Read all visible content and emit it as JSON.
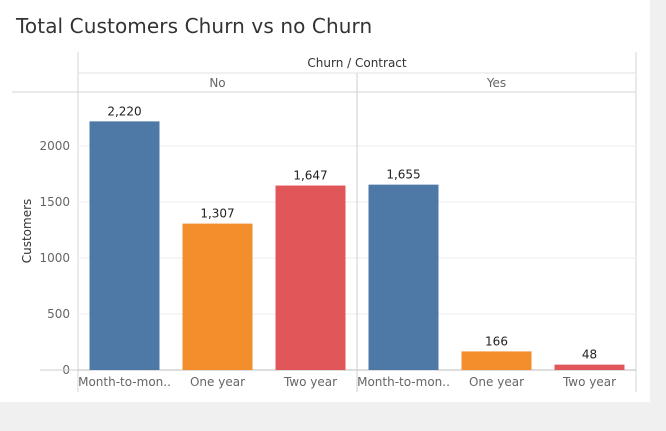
{
  "title": "Total Customers Churn vs no Churn",
  "chart_data": {
    "type": "bar",
    "column_header": "Churn / Contract",
    "ylabel": "Customers",
    "ylim": [
      0,
      2300
    ],
    "yticks": [
      0,
      500,
      1000,
      1500,
      2000
    ],
    "grid": true,
    "colors": {
      "Month-to-month": "#4e79a7",
      "One year": "#f28e2b",
      "Two year": "#e15759"
    },
    "panels": [
      {
        "name": "No",
        "categories": [
          "Month-to-mon..",
          "One year",
          "Two year"
        ],
        "contracts": [
          "Month-to-month",
          "One year",
          "Two year"
        ],
        "values": [
          2220,
          1307,
          1647
        ],
        "labels": [
          "2,220",
          "1,307",
          "1,647"
        ]
      },
      {
        "name": "Yes",
        "categories": [
          "Month-to-mon..",
          "One year",
          "Two year"
        ],
        "contracts": [
          "Month-to-month",
          "One year",
          "Two year"
        ],
        "values": [
          1655,
          166,
          48
        ],
        "labels": [
          "1,655",
          "166",
          "48"
        ]
      }
    ]
  }
}
